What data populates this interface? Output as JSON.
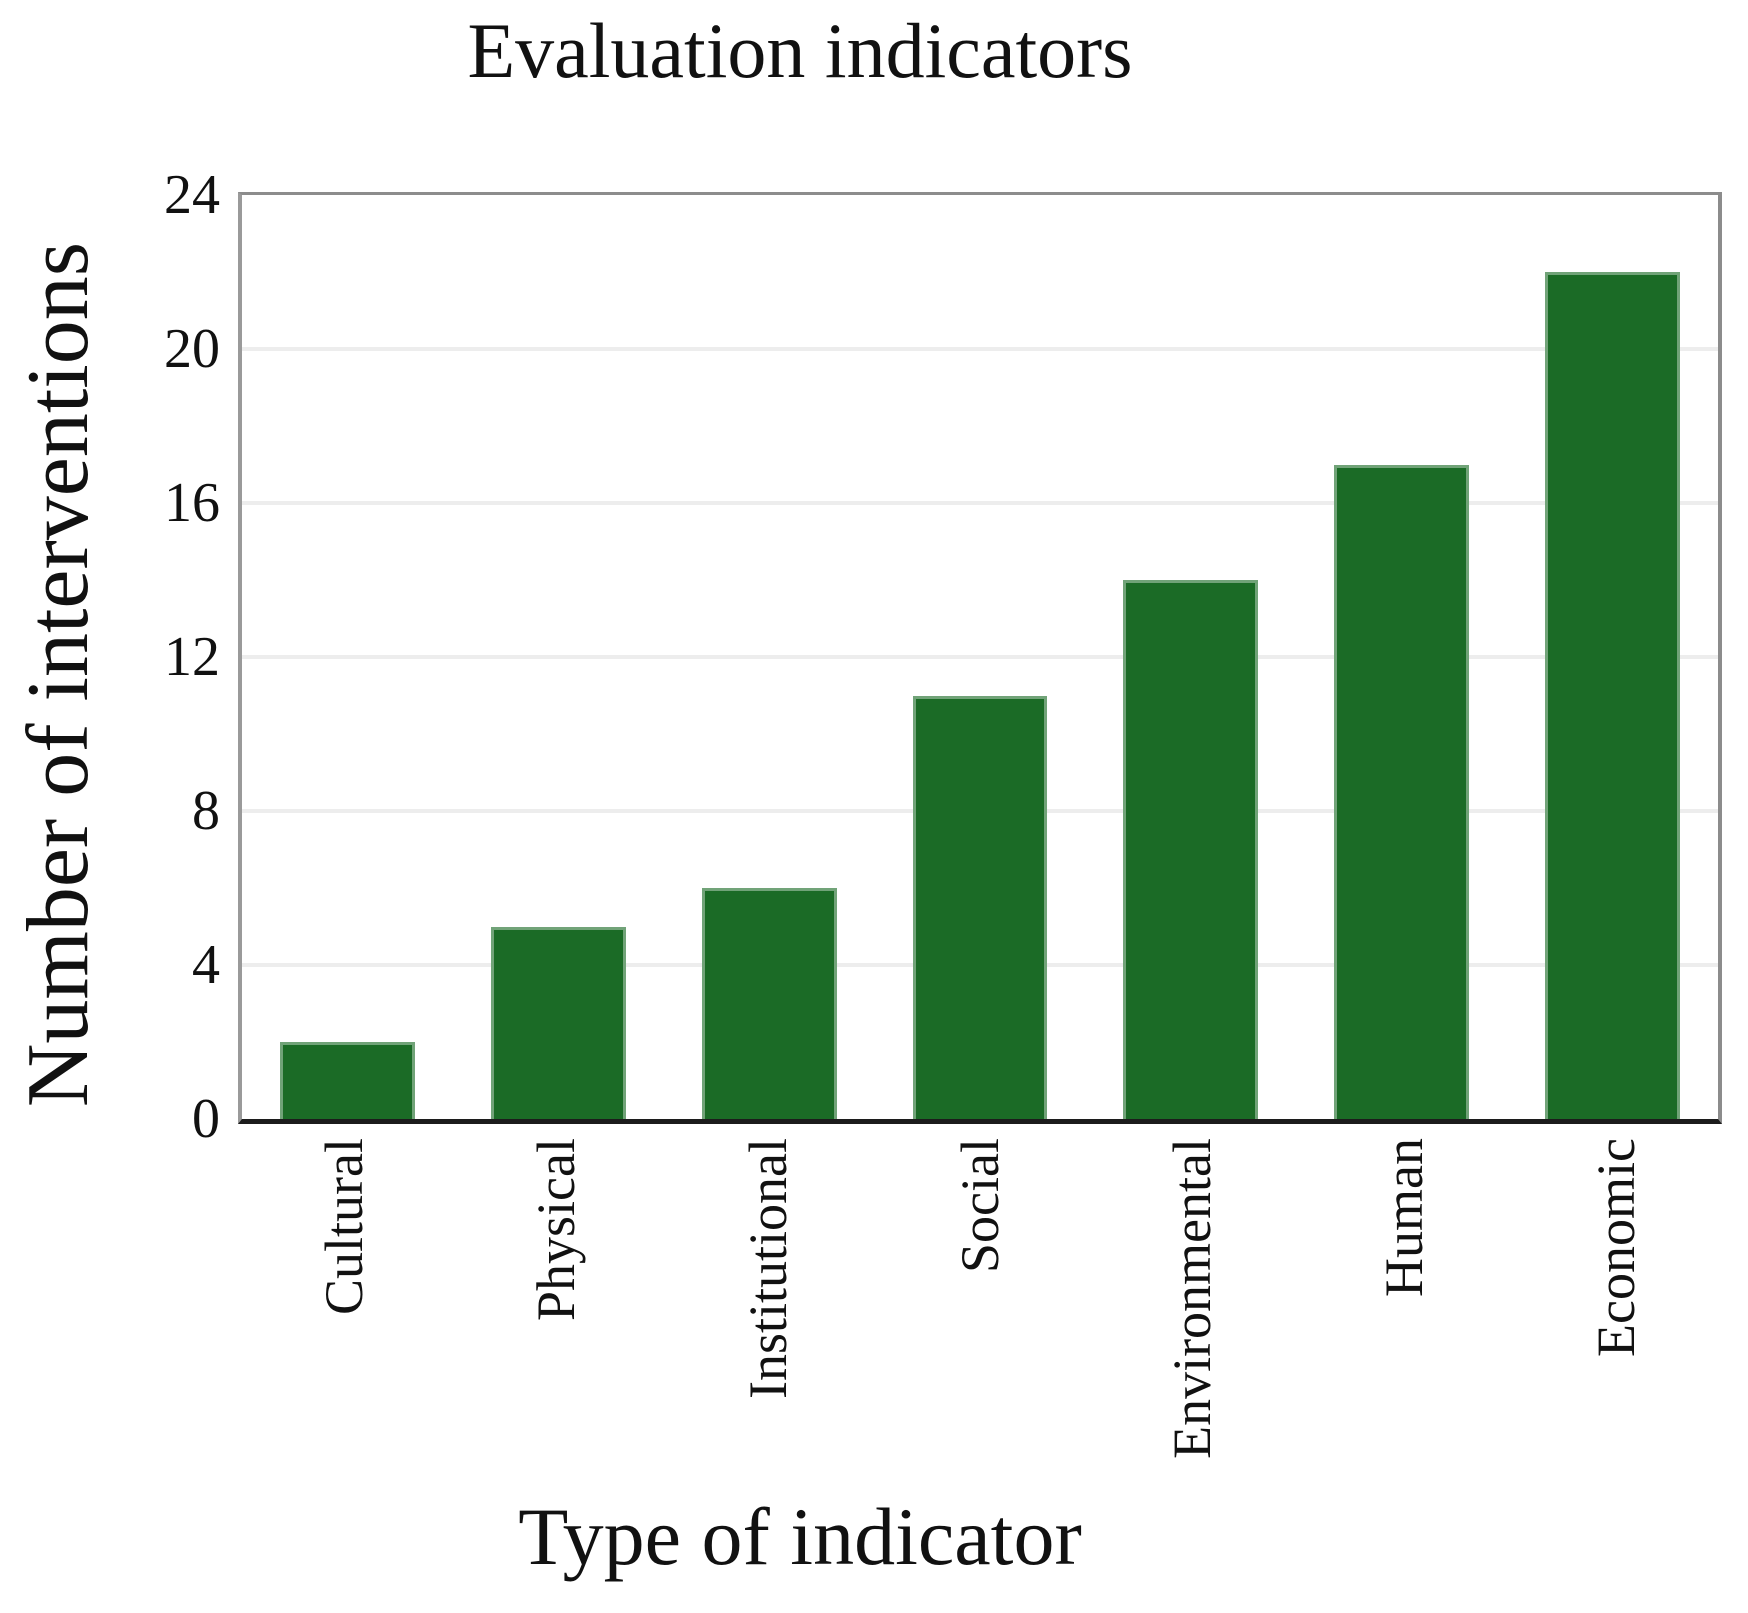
{
  "chart_data": {
    "type": "bar",
    "title": "Evaluation indicators",
    "xlabel": "Type of indicator",
    "ylabel": "Number of interventions",
    "categories": [
      "Cultural",
      "Physical",
      "Institutional",
      "Social",
      "Environmental",
      "Human",
      "Economic"
    ],
    "values": [
      2,
      5,
      6,
      11,
      14,
      17,
      22
    ],
    "ylim": [
      0,
      24
    ],
    "yticks": [
      0,
      4,
      8,
      12,
      16,
      20,
      24
    ],
    "gridlines": [
      4,
      8,
      12,
      16,
      20
    ],
    "grid": "on",
    "legend": "none",
    "colors": {
      "bar": "#1b6b26",
      "gridline": "#ededed",
      "frame": "#8c8c8c",
      "bottom_axis": "#1c1c1c",
      "text": "#111111",
      "background": "#ffffff"
    }
  }
}
